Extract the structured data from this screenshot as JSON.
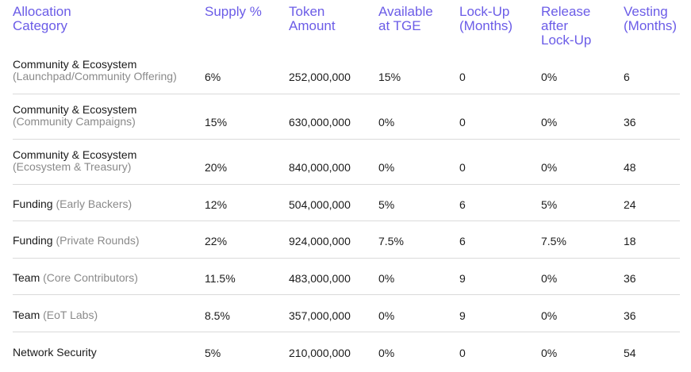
{
  "headers": {
    "category": "Allocation\nCategory",
    "supply": "Supply %",
    "amount": "Token\nAmount",
    "tge": "Available\nat TGE",
    "lockup": "Lock-Up\n(Months)",
    "release": "Release\nafter\nLock-Up",
    "vesting": "Vesting\n(Months)"
  },
  "rows": [
    {
      "cat": "Community & Ecosystem",
      "sub": "(Launchpad/Community Offering)",
      "supply": "6%",
      "amount": "252,000,000",
      "tge": "15%",
      "lockup": "0",
      "release": "0%",
      "vesting": "6"
    },
    {
      "cat": "Community & Ecosystem",
      "sub": "(Community Campaigns)",
      "supply": "15%",
      "amount": "630,000,000",
      "tge": "0%",
      "lockup": "0",
      "release": "0%",
      "vesting": "36"
    },
    {
      "cat": "Community & Ecosystem",
      "sub": "(Ecosystem & Treasury)",
      "supply": "20%",
      "amount": "840,000,000",
      "tge": "0%",
      "lockup": "0",
      "release": "0%",
      "vesting": "48"
    },
    {
      "cat": "Funding",
      "sub": "(Early Backers)",
      "supply": "12%",
      "amount": "504,000,000",
      "tge": "5%",
      "lockup": "6",
      "release": "5%",
      "vesting": "24"
    },
    {
      "cat": "Funding",
      "sub": "(Private Rounds)",
      "supply": "22%",
      "amount": "924,000,000",
      "tge": "7.5%",
      "lockup": "6",
      "release": "7.5%",
      "vesting": "18"
    },
    {
      "cat": "Team",
      "sub": "(Core Contributors)",
      "supply": "11.5%",
      "amount": "483,000,000",
      "tge": "0%",
      "lockup": "9",
      "release": "0%",
      "vesting": "36"
    },
    {
      "cat": "Team",
      "sub": "(EoT Labs)",
      "supply": "8.5%",
      "amount": "357,000,000",
      "tge": "0%",
      "lockup": "9",
      "release": "0%",
      "vesting": "36"
    },
    {
      "cat": "Network Security",
      "sub": "",
      "supply": "5%",
      "amount": "210,000,000",
      "tge": "0%",
      "lockup": "0",
      "release": "0%",
      "vesting": "54"
    }
  ]
}
